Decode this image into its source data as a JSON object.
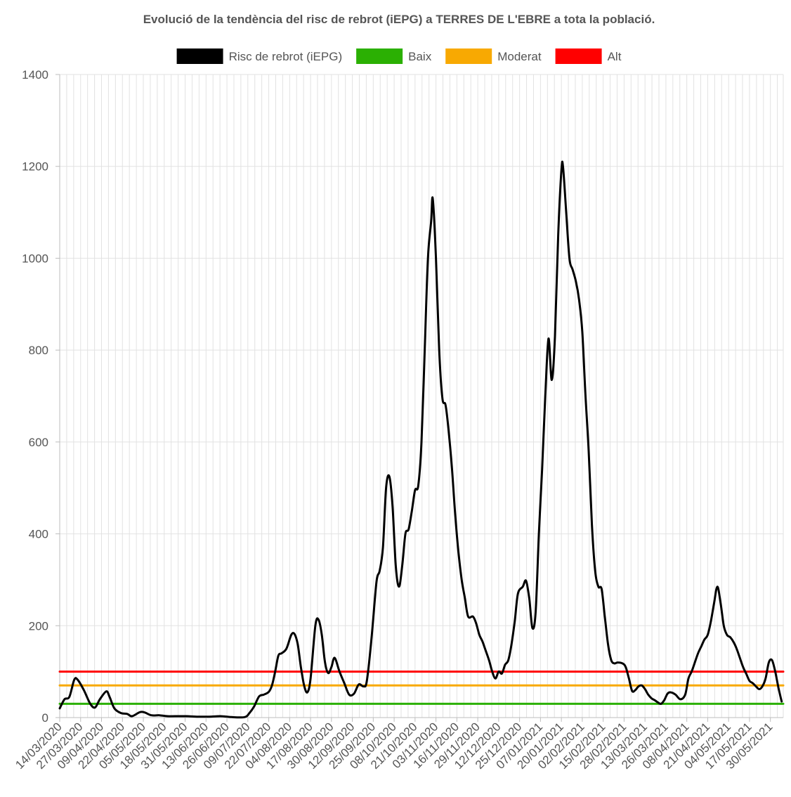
{
  "chart_data": {
    "type": "line",
    "title": "Evolució de la tendència del risc de rebrot (iEPG) a TERRES DE L'EBRE a tota la població.",
    "ylim": [
      0,
      1400
    ],
    "yticks": [
      0,
      200,
      400,
      600,
      800,
      1000,
      1200,
      1400
    ],
    "xlim": [
      "14/03/2020",
      "07/06/2021"
    ],
    "xtick_labels": [
      "14/03/2020",
      "27/03/2020",
      "09/04/2020",
      "22/04/2020",
      "05/05/2020",
      "18/05/2020",
      "31/05/2020",
      "13/06/2020",
      "26/06/2020",
      "09/07/2020",
      "22/07/2020",
      "04/08/2020",
      "17/08/2020",
      "30/08/2020",
      "12/09/2020",
      "25/09/2020",
      "08/10/2020",
      "21/10/2020",
      "03/11/2020",
      "16/11/2020",
      "29/11/2020",
      "12/12/2020",
      "25/12/2020",
      "07/01/2021",
      "20/01/2021",
      "02/02/2021",
      "15/02/2021",
      "28/02/2021",
      "13/03/2021",
      "26/03/2021",
      "08/04/2021",
      "21/04/2021",
      "04/05/2021",
      "17/05/2021",
      "30/05/2021"
    ],
    "grid": true,
    "legend_position": "top",
    "series": [
      {
        "name": "Risc de rebrot (iEPG)",
        "color": "#000000",
        "points": [
          [
            "14/03/2020",
            20
          ],
          [
            "17/03/2020",
            40
          ],
          [
            "20/03/2020",
            45
          ],
          [
            "23/03/2020",
            82
          ],
          [
            "25/03/2020",
            83
          ],
          [
            "29/03/2020",
            60
          ],
          [
            "02/04/2020",
            30
          ],
          [
            "05/04/2020",
            22
          ],
          [
            "08/04/2020",
            40
          ],
          [
            "12/04/2020",
            57
          ],
          [
            "14/04/2020",
            45
          ],
          [
            "17/04/2020",
            20
          ],
          [
            "21/04/2020",
            10
          ],
          [
            "25/04/2020",
            8
          ],
          [
            "28/04/2020",
            3
          ],
          [
            "03/05/2020",
            12
          ],
          [
            "06/05/2020",
            11
          ],
          [
            "10/05/2020",
            5
          ],
          [
            "15/05/2020",
            5
          ],
          [
            "20/05/2020",
            3
          ],
          [
            "27/05/2020",
            3
          ],
          [
            "01/06/2020",
            3
          ],
          [
            "08/06/2020",
            2
          ],
          [
            "15/06/2020",
            2
          ],
          [
            "22/06/2020",
            3
          ],
          [
            "29/06/2020",
            1
          ],
          [
            "07/07/2020",
            1
          ],
          [
            "10/07/2020",
            10
          ],
          [
            "13/07/2020",
            25
          ],
          [
            "16/07/2020",
            46
          ],
          [
            "19/07/2020",
            50
          ],
          [
            "22/07/2020",
            56
          ],
          [
            "24/07/2020",
            70
          ],
          [
            "26/07/2020",
            100
          ],
          [
            "28/07/2020",
            135
          ],
          [
            "30/07/2020",
            140
          ],
          [
            "02/08/2020",
            150
          ],
          [
            "05/08/2020",
            180
          ],
          [
            "07/08/2020",
            182
          ],
          [
            "09/08/2020",
            160
          ],
          [
            "11/08/2020",
            110
          ],
          [
            "13/08/2020",
            70
          ],
          [
            "15/08/2020",
            55
          ],
          [
            "17/08/2020",
            85
          ],
          [
            "20/08/2020",
            200
          ],
          [
            "22/08/2020",
            213
          ],
          [
            "24/08/2020",
            180
          ],
          [
            "26/08/2020",
            120
          ],
          [
            "28/08/2020",
            97
          ],
          [
            "30/08/2020",
            110
          ],
          [
            "01/09/2020",
            130
          ],
          [
            "04/09/2020",
            100
          ],
          [
            "07/09/2020",
            75
          ],
          [
            "10/09/2020",
            50
          ],
          [
            "13/09/2020",
            52
          ],
          [
            "16/09/2020",
            72
          ],
          [
            "19/09/2020",
            68
          ],
          [
            "21/09/2020",
            80
          ],
          [
            "24/09/2020",
            175
          ],
          [
            "27/09/2020",
            295
          ],
          [
            "29/09/2020",
            320
          ],
          [
            "01/10/2020",
            370
          ],
          [
            "03/10/2020",
            500
          ],
          [
            "05/10/2020",
            525
          ],
          [
            "07/10/2020",
            460
          ],
          [
            "09/10/2020",
            330
          ],
          [
            "11/10/2020",
            285
          ],
          [
            "13/10/2020",
            330
          ],
          [
            "15/10/2020",
            400
          ],
          [
            "17/10/2020",
            410
          ],
          [
            "19/10/2020",
            450
          ],
          [
            "21/10/2020",
            495
          ],
          [
            "23/10/2020",
            505
          ],
          [
            "25/10/2020",
            600
          ],
          [
            "27/10/2020",
            800
          ],
          [
            "29/10/2020",
            1000
          ],
          [
            "31/10/2020",
            1080
          ],
          [
            "01/11/2020",
            1130
          ],
          [
            "03/11/2020",
            1000
          ],
          [
            "05/11/2020",
            800
          ],
          [
            "07/11/2020",
            695
          ],
          [
            "09/11/2020",
            680
          ],
          [
            "11/11/2020",
            620
          ],
          [
            "13/11/2020",
            540
          ],
          [
            "15/11/2020",
            440
          ],
          [
            "17/11/2020",
            360
          ],
          [
            "19/11/2020",
            300
          ],
          [
            "21/11/2020",
            260
          ],
          [
            "23/11/2020",
            220
          ],
          [
            "26/11/2020",
            220
          ],
          [
            "28/11/2020",
            205
          ],
          [
            "30/11/2020",
            180
          ],
          [
            "02/12/2020",
            165
          ],
          [
            "04/12/2020",
            145
          ],
          [
            "06/12/2020",
            125
          ],
          [
            "08/12/2020",
            100
          ],
          [
            "10/12/2020",
            85
          ],
          [
            "12/12/2020",
            100
          ],
          [
            "14/12/2020",
            96
          ],
          [
            "16/12/2020",
            115
          ],
          [
            "18/12/2020",
            125
          ],
          [
            "20/12/2020",
            160
          ],
          [
            "22/12/2020",
            210
          ],
          [
            "24/12/2020",
            270
          ],
          [
            "27/12/2020",
            285
          ],
          [
            "29/12/2020",
            298
          ],
          [
            "31/12/2020",
            260
          ],
          [
            "02/01/2021",
            195
          ],
          [
            "04/01/2021",
            230
          ],
          [
            "06/01/2021",
            400
          ],
          [
            "08/01/2021",
            540
          ],
          [
            "10/01/2021",
            700
          ],
          [
            "12/01/2021",
            825
          ],
          [
            "14/01/2021",
            735
          ],
          [
            "16/01/2021",
            830
          ],
          [
            "18/01/2021",
            1050
          ],
          [
            "20/01/2021",
            1190
          ],
          [
            "21/01/2021",
            1200
          ],
          [
            "23/01/2021",
            1100
          ],
          [
            "25/01/2021",
            1000
          ],
          [
            "27/01/2021",
            975
          ],
          [
            "29/01/2021",
            950
          ],
          [
            "31/01/2021",
            910
          ],
          [
            "02/02/2021",
            840
          ],
          [
            "04/02/2021",
            700
          ],
          [
            "06/02/2021",
            580
          ],
          [
            "08/02/2021",
            420
          ],
          [
            "10/02/2021",
            320
          ],
          [
            "12/02/2021",
            285
          ],
          [
            "14/02/2021",
            280
          ],
          [
            "16/02/2021",
            220
          ],
          [
            "18/02/2021",
            160
          ],
          [
            "20/02/2021",
            125
          ],
          [
            "22/02/2021",
            118
          ],
          [
            "24/02/2021",
            120
          ],
          [
            "27/02/2021",
            118
          ],
          [
            "01/03/2021",
            110
          ],
          [
            "03/03/2021",
            85
          ],
          [
            "05/03/2021",
            58
          ],
          [
            "07/03/2021",
            60
          ],
          [
            "09/03/2021",
            68
          ],
          [
            "11/03/2021",
            70
          ],
          [
            "13/03/2021",
            62
          ],
          [
            "15/03/2021",
            50
          ],
          [
            "17/03/2021",
            42
          ],
          [
            "19/03/2021",
            38
          ],
          [
            "21/03/2021",
            33
          ],
          [
            "23/03/2021",
            30
          ],
          [
            "25/03/2021",
            38
          ],
          [
            "27/03/2021",
            52
          ],
          [
            "29/03/2021",
            55
          ],
          [
            "01/04/2021",
            50
          ],
          [
            "04/04/2021",
            40
          ],
          [
            "07/04/2021",
            50
          ],
          [
            "09/04/2021",
            85
          ],
          [
            "11/04/2021",
            100
          ],
          [
            "13/04/2021",
            120
          ],
          [
            "15/04/2021",
            140
          ],
          [
            "17/04/2021",
            155
          ],
          [
            "19/04/2021",
            170
          ],
          [
            "21/04/2021",
            180
          ],
          [
            "23/04/2021",
            210
          ],
          [
            "25/04/2021",
            250
          ],
          [
            "27/04/2021",
            285
          ],
          [
            "29/04/2021",
            250
          ],
          [
            "01/05/2021",
            200
          ],
          [
            "03/05/2021",
            180
          ],
          [
            "05/05/2021",
            175
          ],
          [
            "07/05/2021",
            165
          ],
          [
            "09/05/2021",
            150
          ],
          [
            "11/05/2021",
            130
          ],
          [
            "13/05/2021",
            110
          ],
          [
            "15/05/2021",
            95
          ],
          [
            "17/05/2021",
            80
          ],
          [
            "19/05/2021",
            75
          ],
          [
            "21/05/2021",
            68
          ],
          [
            "23/05/2021",
            62
          ],
          [
            "25/05/2021",
            68
          ],
          [
            "27/05/2021",
            85
          ],
          [
            "29/05/2021",
            120
          ],
          [
            "31/05/2021",
            125
          ],
          [
            "02/06/2021",
            100
          ],
          [
            "04/06/2021",
            65
          ],
          [
            "06/06/2021",
            35
          ]
        ]
      },
      {
        "name": "Baix",
        "color": "#2bb003",
        "points": [
          [
            "14/03/2020",
            30
          ],
          [
            "07/06/2021",
            30
          ]
        ]
      },
      {
        "name": "Moderat",
        "color": "#f8a902",
        "points": [
          [
            "14/03/2020",
            70
          ],
          [
            "07/06/2021",
            70
          ]
        ]
      },
      {
        "name": "Alt",
        "color": "#ff0000",
        "points": [
          [
            "14/03/2020",
            100
          ],
          [
            "07/06/2021",
            100
          ]
        ]
      }
    ]
  }
}
